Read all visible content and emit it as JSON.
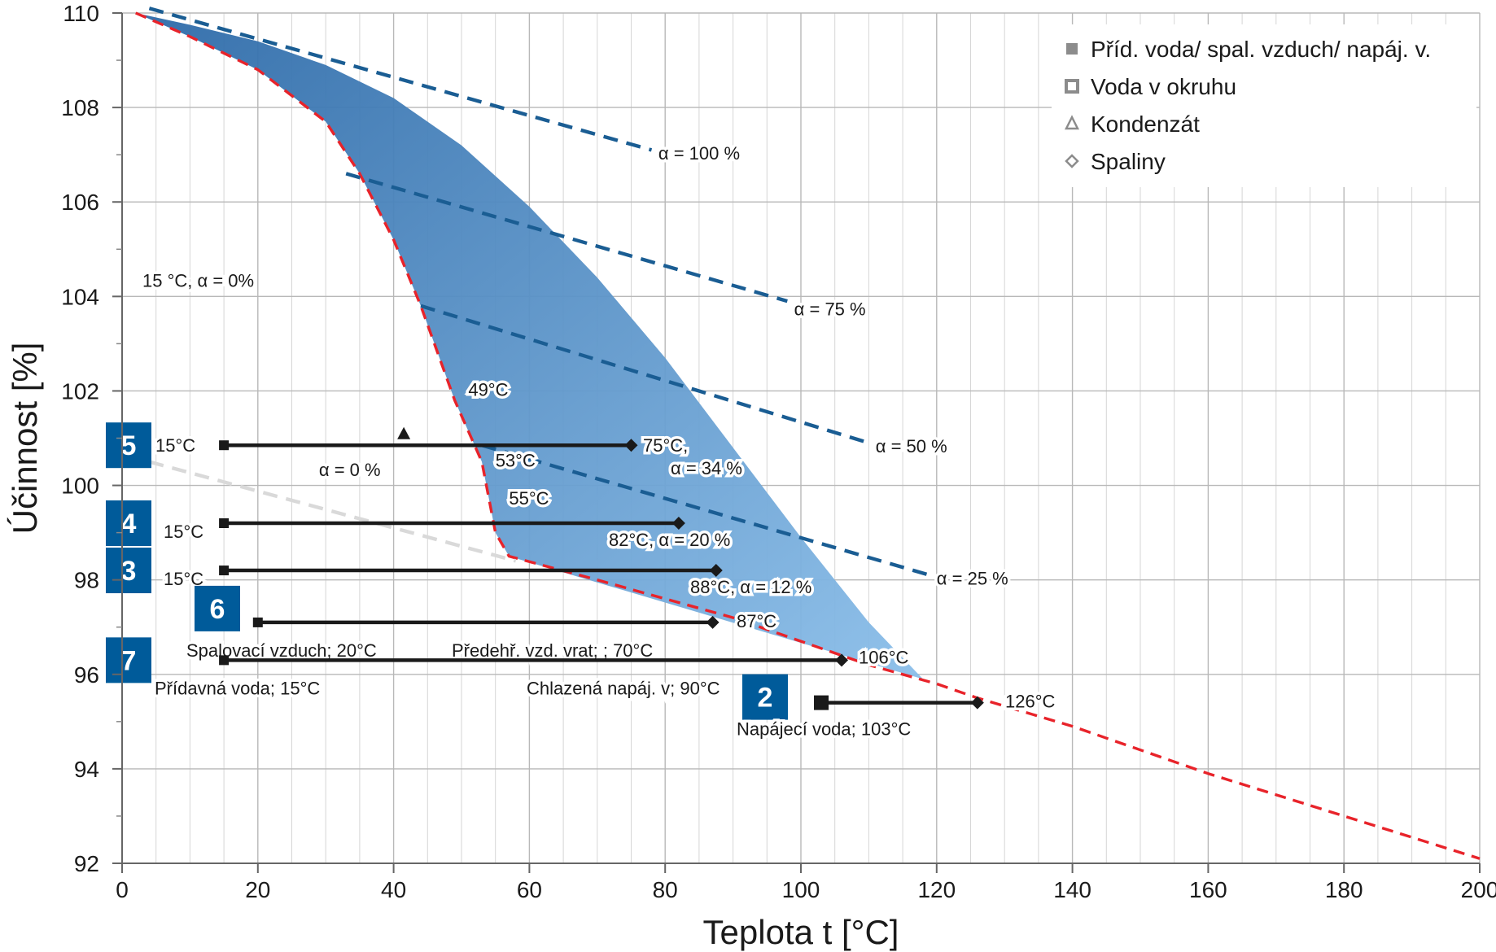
{
  "chart_data": {
    "type": "line",
    "xlabel": "Teplota t [°C]",
    "ylabel": "Účinnost [%]",
    "xlim": [
      0,
      200
    ],
    "ylim": [
      92,
      110
    ],
    "x_ticks": [
      0,
      20,
      40,
      60,
      80,
      100,
      120,
      140,
      160,
      180,
      200
    ],
    "y_ticks": [
      92,
      94,
      96,
      98,
      100,
      102,
      104,
      106,
      108,
      110
    ],
    "grid": true,
    "legend_position": "top-right",
    "legend": [
      {
        "label": "Příd. voda/ spal. vzduch/ napáj. v.",
        "marker": "filled-square"
      },
      {
        "label": "Voda v okruhu",
        "marker": "hollow-square"
      },
      {
        "label": "Kondenzát",
        "marker": "hollow-triangle"
      },
      {
        "label": "Spaliny",
        "marker": "hollow-diamond"
      }
    ],
    "colors": {
      "red_curve": "#e8232a",
      "alpha_lines": "#1a5d93",
      "area": "#4a8ecb",
      "grey_line": "#d9d9d9",
      "badge": "#005b9a",
      "segments": "#1a1a1a"
    },
    "efficiency_area": {
      "upper": [
        [
          2,
          110
        ],
        [
          10,
          109.75
        ],
        [
          20,
          109.4
        ],
        [
          30,
          108.9
        ],
        [
          40,
          108.2
        ],
        [
          50,
          107.2
        ],
        [
          60,
          105.9
        ],
        [
          70,
          104.4
        ],
        [
          80,
          102.7
        ],
        [
          90,
          100.8
        ],
        [
          100,
          98.9
        ],
        [
          110,
          97.1
        ],
        [
          118,
          95.9
        ],
        [
          125,
          95.6
        ]
      ],
      "lower": [
        [
          125,
          95.6
        ],
        [
          57,
          98.5
        ],
        [
          55,
          99.0
        ],
        [
          53,
          100.5
        ],
        [
          49,
          101.8
        ],
        [
          44,
          103.8
        ],
        [
          40,
          105.2
        ],
        [
          35,
          106.6
        ],
        [
          30,
          107.7
        ],
        [
          20,
          108.8
        ],
        [
          10,
          109.5
        ],
        [
          2,
          110
        ]
      ]
    },
    "series": [
      {
        "name": "15 °C, α = 0%",
        "color": "#e8232a",
        "style": "dashed",
        "points": [
          [
            2,
            110
          ],
          [
            10,
            109.5
          ],
          [
            20,
            108.8
          ],
          [
            30,
            107.7
          ],
          [
            35,
            106.6
          ],
          [
            40,
            105.2
          ],
          [
            44,
            103.8
          ],
          [
            49,
            101.8
          ],
          [
            53,
            100.5
          ],
          [
            55,
            99.0
          ],
          [
            57,
            98.5
          ],
          [
            70,
            98.0
          ],
          [
            80,
            97.6
          ],
          [
            90,
            97.2
          ],
          [
            100,
            96.7
          ],
          [
            110,
            96.2
          ],
          [
            120,
            95.8
          ],
          [
            126,
            95.5
          ],
          [
            140,
            94.9
          ],
          [
            160,
            93.9
          ],
          [
            180,
            93.0
          ],
          [
            200,
            92.1
          ]
        ]
      },
      {
        "name": "α = 0 %",
        "color": "#d9d9d9",
        "style": "dashed",
        "points": [
          [
            4,
            100.5
          ],
          [
            58,
            98.4
          ]
        ]
      },
      {
        "name": "α = 100 %",
        "color": "#1a5d93",
        "style": "dashed",
        "points": [
          [
            4,
            110.1
          ],
          [
            78,
            107.1
          ]
        ]
      },
      {
        "name": "α = 75 %",
        "color": "#1a5d93",
        "style": "dashed",
        "points": [
          [
            33,
            106.6
          ],
          [
            98,
            103.9
          ]
        ]
      },
      {
        "name": "α = 50 %",
        "color": "#1a5d93",
        "style": "dashed",
        "points": [
          [
            44,
            103.8
          ],
          [
            110,
            100.9
          ]
        ]
      },
      {
        "name": "α = 25 %",
        "color": "#1a5d93",
        "style": "dashed",
        "points": [
          [
            53,
            100.85
          ],
          [
            119,
            98.1
          ]
        ]
      }
    ],
    "segments": [
      {
        "badge": "5",
        "y": 100.85,
        "x_start": 15,
        "x_end": 75,
        "start_label": "15°C",
        "end_label_lines": [
          "75°C,",
          "α = 34 %"
        ],
        "condensate_marker": {
          "x": 41.5,
          "y": 101.1
        }
      },
      {
        "badge": "4",
        "y": 99.2,
        "x_start": 15,
        "x_end": 82,
        "start_label": "15°C",
        "end_label_lines": [
          "82°C, α = 20 %"
        ]
      },
      {
        "badge": "3",
        "y": 98.2,
        "x_start": 15,
        "x_end": 87.5,
        "start_label": "15°C",
        "end_label_lines": [
          "88°C, α = 12 %"
        ]
      },
      {
        "badge": "6",
        "y": 97.1,
        "x_start": 20,
        "x_end": 87,
        "start_label": "Spalovací vzduch; 20°C",
        "end_label_lines": [
          "87°C"
        ],
        "mid_label": "Předehř. vzd. vrat; ; 70°C"
      },
      {
        "badge": "7",
        "y": 96.3,
        "x_start": 15,
        "x_end": 106,
        "start_label": "Přídavná voda; 15°C",
        "end_label_lines": [
          "106°C"
        ],
        "mid_label": "Chlazená napáj. v; 90°C"
      },
      {
        "badge": "2",
        "y": 95.4,
        "x_start": 103,
        "x_end": 126,
        "start_label": "Napájecí voda; 103°C",
        "end_label_lines": [
          "126°C"
        ]
      }
    ],
    "annotations": [
      {
        "text": "15 °C, α = 0%",
        "x": 3,
        "y": 104.2
      },
      {
        "text": "49°C",
        "x": 51,
        "y": 101.9
      },
      {
        "text": "53°C",
        "x": 55,
        "y": 100.4
      },
      {
        "text": "55°C",
        "x": 57,
        "y": 99.6
      },
      {
        "text": "α = 0 %",
        "x": 29,
        "y": 100.2
      },
      {
        "text": "α = 100 %",
        "x": 79,
        "y": 106.9
      },
      {
        "text": "α = 75 %",
        "x": 99,
        "y": 103.6
      },
      {
        "text": "α = 50 %",
        "x": 111,
        "y": 100.7
      },
      {
        "text": "α = 25 %",
        "x": 120,
        "y": 97.9
      }
    ]
  }
}
